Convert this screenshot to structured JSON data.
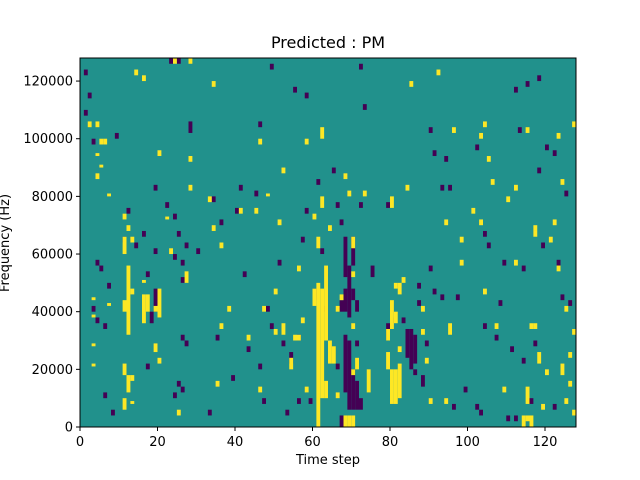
{
  "chart_data": {
    "type": "heatmap",
    "title": "Predicted : PM",
    "xlabel": "Time step",
    "ylabel": "Frequency (Hz)",
    "xlim": [
      0,
      128
    ],
    "ylim": [
      0,
      128000
    ],
    "xticks": [
      0,
      20,
      40,
      60,
      80,
      100,
      120
    ],
    "yticks": [
      0,
      20000,
      40000,
      60000,
      80000,
      100000,
      120000
    ],
    "ytick_labels": [
      "0",
      "20000",
      "40000",
      "60000",
      "80000",
      "100000",
      "120000"
    ],
    "grid": false,
    "legend": "none",
    "n_time_steps": 128,
    "n_frequency_bins": 128,
    "bin_width_hz": 1000,
    "cell_values": [
      0,
      1,
      2
    ],
    "colors": {
      "0": "#440154",
      "1": "#21918c",
      "2": "#fde725"
    },
    "background_value": 1,
    "note_values": "cells not listed have value 1; listed cells give [time_step, freq_start_hz, freq_end_hz]",
    "high_cells": [
      [
        3,
        44000,
        45000
      ],
      [
        3,
        38000,
        39000
      ],
      [
        3,
        28000,
        29000
      ],
      [
        3,
        21000,
        22000
      ],
      [
        4,
        86000,
        88000
      ],
      [
        4,
        94000,
        95000
      ],
      [
        5,
        90000,
        91000
      ],
      [
        5,
        98000,
        100000
      ],
      [
        6,
        98000,
        100000
      ],
      [
        7,
        80000,
        81000
      ],
      [
        7,
        42000,
        43000
      ],
      [
        11,
        72000,
        74000
      ],
      [
        11,
        60000,
        66000
      ],
      [
        12,
        68000,
        70000
      ],
      [
        12,
        32000,
        56000
      ],
      [
        11,
        18000,
        22000
      ],
      [
        11,
        6000,
        10000
      ],
      [
        13,
        64000,
        66000
      ],
      [
        13,
        46000,
        48000
      ],
      [
        13,
        8000,
        9000
      ],
      [
        16,
        50000,
        51000
      ],
      [
        16,
        36000,
        46000
      ],
      [
        17,
        40000,
        46000
      ],
      [
        19,
        40000,
        42000
      ],
      [
        19,
        26000,
        29000
      ],
      [
        20,
        38000,
        48000
      ],
      [
        20,
        22000,
        24000
      ],
      [
        20,
        94000,
        96000
      ],
      [
        22,
        72000,
        73000
      ],
      [
        23,
        60000,
        62000
      ],
      [
        25,
        4000,
        6000
      ],
      [
        28,
        82000,
        84000
      ],
      [
        28,
        92000,
        94000
      ],
      [
        27,
        50000,
        54000
      ],
      [
        33,
        78000,
        80000
      ],
      [
        34,
        68000,
        70000
      ],
      [
        36,
        34000,
        36000
      ],
      [
        35,
        14000,
        16000
      ],
      [
        45,
        74000,
        76000
      ],
      [
        47,
        40000,
        42000
      ],
      [
        48,
        80000,
        81000
      ],
      [
        46,
        12000,
        14000
      ],
      [
        50,
        46000,
        48000
      ],
      [
        51,
        70000,
        72000
      ],
      [
        52,
        32000,
        36000
      ],
      [
        56,
        54000,
        56000
      ],
      [
        56,
        30000,
        32000
      ],
      [
        58,
        12000,
        14000
      ],
      [
        58,
        98000,
        100000
      ],
      [
        60,
        72000,
        74000
      ],
      [
        60,
        42000,
        48000
      ],
      [
        61,
        0,
        50000
      ],
      [
        61,
        62000,
        66000
      ],
      [
        62,
        10000,
        48000
      ],
      [
        62,
        76000,
        80000
      ],
      [
        63,
        30000,
        56000
      ],
      [
        63,
        10000,
        16000
      ],
      [
        64,
        22000,
        30000
      ],
      [
        64,
        68000,
        70000
      ],
      [
        65,
        22000,
        28000
      ],
      [
        68,
        0,
        4000
      ],
      [
        69,
        0,
        4000
      ],
      [
        70,
        0,
        4000
      ],
      [
        68,
        86000,
        88000
      ],
      [
        70,
        62000,
        66000
      ],
      [
        70,
        52000,
        54000
      ],
      [
        70,
        34000,
        36000
      ],
      [
        70,
        18000,
        20000
      ],
      [
        71,
        20000,
        24000
      ],
      [
        73,
        80000,
        82000
      ],
      [
        74,
        12000,
        20000
      ],
      [
        79,
        20000,
        26000
      ],
      [
        79,
        30000,
        34000
      ],
      [
        80,
        8000,
        20000
      ],
      [
        80,
        34000,
        44000
      ],
      [
        80,
        76000,
        80000
      ],
      [
        81,
        8000,
        20000
      ],
      [
        81,
        36000,
        40000
      ],
      [
        81,
        48000,
        50000
      ],
      [
        82,
        10000,
        22000
      ],
      [
        82,
        26000,
        28000
      ],
      [
        82,
        46000,
        50000
      ],
      [
        84,
        82000,
        84000
      ],
      [
        83,
        50000,
        52000
      ],
      [
        88,
        40000,
        42000
      ],
      [
        88,
        32000,
        34000
      ],
      [
        89,
        22000,
        24000
      ],
      [
        90,
        8000,
        10000
      ],
      [
        94,
        70000,
        72000
      ],
      [
        94,
        8000,
        10000
      ],
      [
        95,
        32000,
        36000
      ],
      [
        96,
        102000,
        104000
      ],
      [
        98,
        56000,
        58000
      ],
      [
        101,
        74000,
        76000
      ],
      [
        103,
        100000,
        102000
      ],
      [
        104,
        46000,
        48000
      ],
      [
        106,
        84000,
        86000
      ],
      [
        107,
        34000,
        36000
      ],
      [
        109,
        12000,
        14000
      ],
      [
        112,
        82000,
        84000
      ],
      [
        112,
        56000,
        58000
      ],
      [
        115,
        102000,
        104000
      ],
      [
        115,
        8000,
        14000
      ],
      [
        116,
        0,
        4000
      ],
      [
        114,
        0,
        4000
      ],
      [
        115,
        2000,
        4000
      ],
      [
        117,
        34000,
        36000
      ],
      [
        117,
        68000,
        70000
      ],
      [
        118,
        22000,
        26000
      ],
      [
        119,
        6000,
        8000
      ],
      [
        120,
        18000,
        20000
      ],
      [
        121,
        64000,
        66000
      ],
      [
        122,
        70000,
        72000
      ],
      [
        123,
        54000,
        56000
      ],
      [
        124,
        18000,
        22000
      ],
      [
        124,
        84000,
        86000
      ],
      [
        125,
        40000,
        42000
      ],
      [
        125,
        8000,
        10000
      ],
      [
        126,
        24000,
        26000
      ],
      [
        126,
        14000,
        16000
      ],
      [
        127,
        32000,
        34000
      ],
      [
        127,
        4000,
        6000
      ],
      [
        127,
        104000,
        106000
      ],
      [
        123,
        100000,
        102000
      ],
      [
        24,
        126000,
        128000
      ],
      [
        28,
        126000,
        128000
      ],
      [
        34,
        118000,
        120000
      ],
      [
        14,
        122000,
        124000
      ],
      [
        16,
        120000,
        122000
      ],
      [
        4,
        104000,
        106000
      ],
      [
        2,
        104000,
        106000
      ],
      [
        92,
        122000,
        124000
      ],
      [
        85,
        118000,
        120000
      ],
      [
        103,
        70000,
        72000
      ],
      [
        105,
        92000,
        94000
      ],
      [
        110,
        78000,
        80000
      ],
      [
        117,
        66000,
        68000
      ],
      [
        116,
        34000,
        36000
      ],
      [
        57,
        36000,
        38000
      ],
      [
        66,
        40000,
        42000
      ],
      [
        67,
        44000,
        46000
      ],
      [
        38,
        40000,
        42000
      ],
      [
        43,
        30000,
        32000
      ],
      [
        11,
        40000,
        44000
      ],
      [
        12,
        12000,
        18000
      ],
      [
        13,
        16000,
        18000
      ],
      [
        54,
        20000,
        24000
      ],
      [
        55,
        30000,
        32000
      ],
      [
        69,
        80000,
        82000
      ],
      [
        66,
        10000,
        12000
      ],
      [
        50,
        32000,
        34000
      ],
      [
        36,
        62000,
        64000
      ],
      [
        41,
        74000,
        76000
      ],
      [
        52,
        88000,
        90000
      ],
      [
        46,
        98000,
        100000
      ],
      [
        62,
        100000,
        104000
      ],
      [
        98,
        64000,
        66000
      ],
      [
        104,
        104000,
        106000
      ]
    ],
    "low_cells": [
      [
        1,
        122000,
        124000
      ],
      [
        2,
        114000,
        116000
      ],
      [
        1,
        108000,
        110000
      ],
      [
        3,
        98000,
        100000
      ],
      [
        4,
        56000,
        58000
      ],
      [
        5,
        54000,
        56000
      ],
      [
        7,
        48000,
        50000
      ],
      [
        3,
        40000,
        42000
      ],
      [
        4,
        36000,
        38000
      ],
      [
        8,
        4000,
        6000
      ],
      [
        6,
        34000,
        36000
      ],
      [
        6,
        10000,
        12000
      ],
      [
        9,
        100000,
        102000
      ],
      [
        11,
        64000,
        66000
      ],
      [
        12,
        74000,
        76000
      ],
      [
        14,
        62000,
        64000
      ],
      [
        16,
        66000,
        68000
      ],
      [
        17,
        52000,
        54000
      ],
      [
        17,
        20000,
        22000
      ],
      [
        19,
        40000,
        48000
      ],
      [
        18,
        36000,
        40000
      ],
      [
        19,
        60000,
        62000
      ],
      [
        19,
        82000,
        84000
      ],
      [
        22,
        76000,
        78000
      ],
      [
        24,
        72000,
        74000
      ],
      [
        24,
        58000,
        60000
      ],
      [
        25,
        66000,
        68000
      ],
      [
        25,
        126000,
        128000
      ],
      [
        27,
        62000,
        64000
      ],
      [
        26,
        56000,
        58000
      ],
      [
        25,
        14000,
        16000
      ],
      [
        26,
        12000,
        14000
      ],
      [
        26,
        30000,
        32000
      ],
      [
        26,
        50000,
        52000
      ],
      [
        27,
        28000,
        30000
      ],
      [
        24,
        10000,
        12000
      ],
      [
        28,
        102000,
        106000
      ],
      [
        30,
        60000,
        62000
      ],
      [
        33,
        4000,
        6000
      ],
      [
        34,
        78000,
        80000
      ],
      [
        36,
        70000,
        72000
      ],
      [
        39,
        16000,
        18000
      ],
      [
        40,
        74000,
        76000
      ],
      [
        41,
        82000,
        84000
      ],
      [
        42,
        52000,
        54000
      ],
      [
        45,
        80000,
        82000
      ],
      [
        46,
        20000,
        22000
      ],
      [
        46,
        104000,
        106000
      ],
      [
        47,
        8000,
        10000
      ],
      [
        49,
        124000,
        126000
      ],
      [
        48,
        40000,
        42000
      ],
      [
        49,
        34000,
        36000
      ],
      [
        51,
        56000,
        58000
      ],
      [
        52,
        28000,
        30000
      ],
      [
        53,
        4000,
        6000
      ],
      [
        55,
        116000,
        118000
      ],
      [
        56,
        30000,
        32000
      ],
      [
        56,
        8000,
        10000
      ],
      [
        57,
        64000,
        66000
      ],
      [
        58,
        74000,
        76000
      ],
      [
        58,
        114000,
        116000
      ],
      [
        59,
        8000,
        10000
      ],
      [
        60,
        44000,
        48000
      ],
      [
        61,
        84000,
        86000
      ],
      [
        62,
        60000,
        62000
      ],
      [
        63,
        40000,
        42000
      ],
      [
        66,
        20000,
        22000
      ],
      [
        67,
        40000,
        44000
      ],
      [
        65,
        88000,
        90000
      ],
      [
        66,
        76000,
        78000
      ],
      [
        67,
        70000,
        72000
      ],
      [
        67,
        0,
        4000
      ],
      [
        68,
        12000,
        32000
      ],
      [
        68,
        52000,
        66000
      ],
      [
        68,
        40000,
        48000
      ],
      [
        69,
        6000,
        30000
      ],
      [
        69,
        38000,
        56000
      ],
      [
        70,
        6000,
        20000
      ],
      [
        70,
        44000,
        48000
      ],
      [
        70,
        56000,
        66000
      ],
      [
        71,
        6000,
        16000
      ],
      [
        71,
        28000,
        30000
      ],
      [
        71,
        40000,
        44000
      ],
      [
        72,
        6000,
        10000
      ],
      [
        72,
        76000,
        78000
      ],
      [
        73,
        110000,
        112000
      ],
      [
        72,
        124000,
        126000
      ],
      [
        75,
        52000,
        56000
      ],
      [
        79,
        30000,
        36000
      ],
      [
        79,
        76000,
        78000
      ],
      [
        80,
        36000,
        38000
      ],
      [
        83,
        36000,
        38000
      ],
      [
        84,
        24000,
        34000
      ],
      [
        85,
        20000,
        34000
      ],
      [
        86,
        22000,
        32000
      ],
      [
        86,
        18000,
        20000
      ],
      [
        87,
        42000,
        44000
      ],
      [
        88,
        14000,
        18000
      ],
      [
        87,
        48000,
        50000
      ],
      [
        89,
        28000,
        30000
      ],
      [
        90,
        54000,
        56000
      ],
      [
        91,
        46000,
        48000
      ],
      [
        90,
        102000,
        104000
      ],
      [
        91,
        94000,
        96000
      ],
      [
        93,
        82000,
        84000
      ],
      [
        94,
        92000,
        94000
      ],
      [
        95,
        82000,
        84000
      ],
      [
        96,
        6000,
        8000
      ],
      [
        97,
        44000,
        46000
      ],
      [
        99,
        12000,
        14000
      ],
      [
        102,
        6000,
        8000
      ],
      [
        103,
        4000,
        6000
      ],
      [
        102,
        96000,
        98000
      ],
      [
        104,
        34000,
        36000
      ],
      [
        104,
        66000,
        68000
      ],
      [
        105,
        62000,
        64000
      ],
      [
        107,
        30000,
        32000
      ],
      [
        108,
        42000,
        44000
      ],
      [
        109,
        56000,
        58000
      ],
      [
        110,
        2000,
        4000
      ],
      [
        111,
        26000,
        28000
      ],
      [
        112,
        2000,
        4000
      ],
      [
        113,
        102000,
        104000
      ],
      [
        114,
        54000,
        56000
      ],
      [
        112,
        116000,
        118000
      ],
      [
        115,
        118000,
        120000
      ],
      [
        114,
        22000,
        24000
      ],
      [
        117,
        28000,
        30000
      ],
      [
        118,
        88000,
        90000
      ],
      [
        118,
        120000,
        122000
      ],
      [
        116,
        8000,
        10000
      ],
      [
        119,
        62000,
        64000
      ],
      [
        120,
        96000,
        98000
      ],
      [
        122,
        6000,
        8000
      ],
      [
        123,
        56000,
        58000
      ],
      [
        124,
        44000,
        46000
      ],
      [
        126,
        42000,
        44000
      ],
      [
        122,
        94000,
        96000
      ],
      [
        125,
        80000,
        82000
      ],
      [
        23,
        126000,
        128000
      ],
      [
        43,
        26000,
        28000
      ],
      [
        54,
        22000,
        26000
      ],
      [
        93,
        44000,
        46000
      ],
      [
        35,
        30000,
        32000
      ]
    ]
  }
}
